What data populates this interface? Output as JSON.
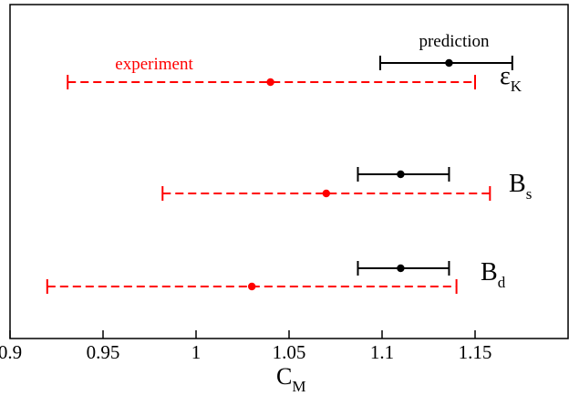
{
  "chart_data": {
    "type": "errorbar",
    "xlabel": {
      "main": "C",
      "sub": "M"
    },
    "xlim": [
      0.9,
      1.2
    ],
    "x_ticks": [
      0.9,
      0.95,
      1.0,
      1.05,
      1.1,
      1.15
    ],
    "x_tick_labels": [
      "0.9",
      "0.95",
      "1",
      "1.05",
      "1.1",
      "1.15"
    ],
    "grid": false,
    "rows": [
      {
        "label": {
          "main": "ε",
          "sub": "K"
        },
        "prediction": {
          "value": 1.136,
          "low": 1.099,
          "high": 1.17
        },
        "experiment": {
          "value": 1.04,
          "low": 0.931,
          "high": 1.15
        }
      },
      {
        "label": {
          "main": "B",
          "sub": "s"
        },
        "prediction": {
          "value": 1.11,
          "low": 1.087,
          "high": 1.136
        },
        "experiment": {
          "value": 1.07,
          "low": 0.982,
          "high": 1.158
        }
      },
      {
        "label": {
          "main": "B",
          "sub": "d"
        },
        "prediction": {
          "value": 1.11,
          "low": 1.087,
          "high": 1.136
        },
        "experiment": {
          "value": 1.03,
          "low": 0.92,
          "high": 1.14
        }
      }
    ],
    "annotations": {
      "prediction": "prediction",
      "experiment": "experiment"
    },
    "colors": {
      "prediction": "#000000",
      "experiment": "#ff0000"
    }
  }
}
